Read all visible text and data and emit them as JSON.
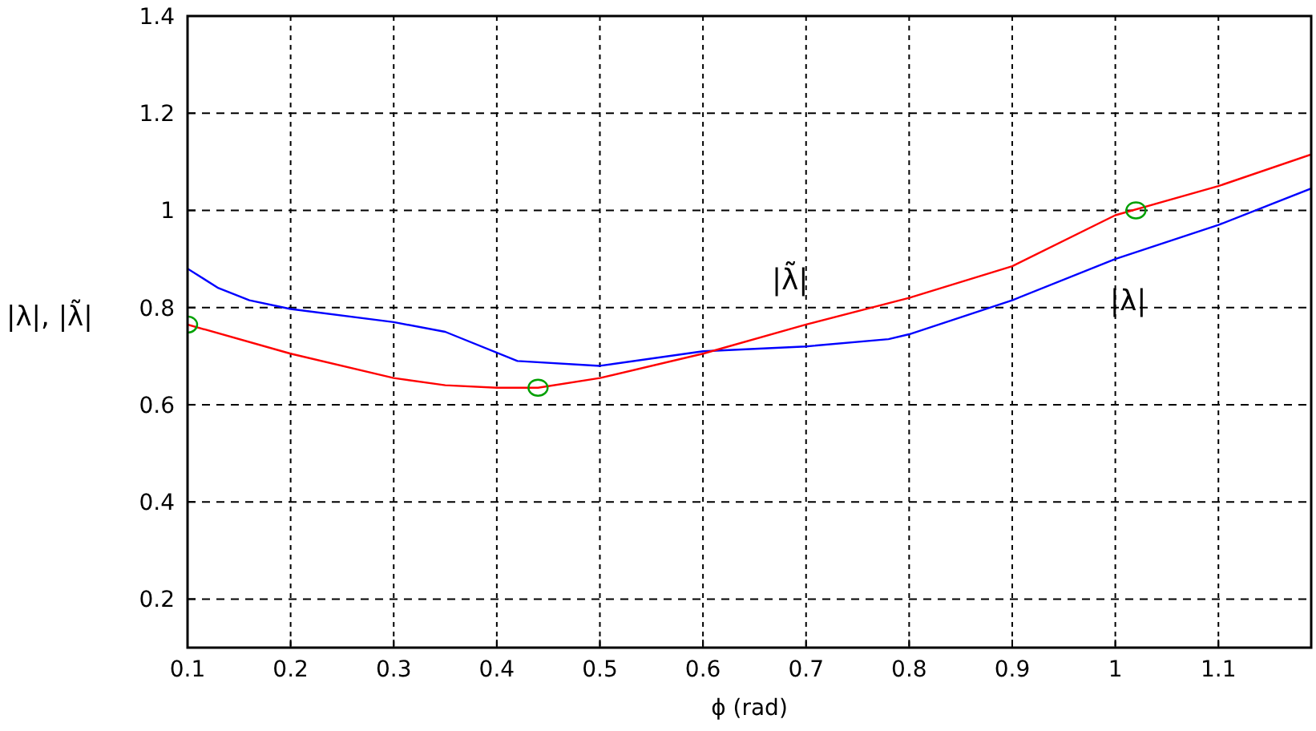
{
  "chart_data": {
    "type": "line",
    "xlabel": "ϕ (rad)",
    "ylabel": "|λ|, |λ̃|",
    "xlim": [
      0.1,
      1.19
    ],
    "ylim": [
      0.1,
      1.4
    ],
    "xticks": [
      0.1,
      0.2,
      0.3,
      0.4,
      0.5,
      0.6,
      0.7,
      0.8,
      0.9,
      1,
      1.1
    ],
    "yticks": [
      0.2,
      0.4,
      0.6,
      0.8,
      1,
      1.2,
      1.4
    ],
    "grid": true,
    "line_style": "solid",
    "marker": "none",
    "series": [
      {
        "name": "|λ|",
        "color": "#0000ff",
        "x": [
          0.1,
          0.13,
          0.16,
          0.2,
          0.3,
          0.35,
          0.42,
          0.5,
          0.6,
          0.7,
          0.78,
          0.8,
          0.9,
          1.0,
          1.1,
          1.19
        ],
        "values": [
          0.88,
          0.84,
          0.815,
          0.797,
          0.77,
          0.75,
          0.69,
          0.68,
          0.71,
          0.72,
          0.735,
          0.745,
          0.815,
          0.9,
          0.97,
          1.045
        ]
      },
      {
        "name": "|λ̃|",
        "color": "#ff0000",
        "x": [
          0.1,
          0.2,
          0.3,
          0.35,
          0.4,
          0.44,
          0.5,
          0.6,
          0.7,
          0.8,
          0.9,
          1.0,
          1.1,
          1.19
        ],
        "values": [
          0.765,
          0.705,
          0.655,
          0.64,
          0.635,
          0.635,
          0.655,
          0.705,
          0.765,
          0.82,
          0.885,
          0.99,
          1.05,
          1.115
        ]
      },
      {
        "type": "scatter",
        "marker": "circle",
        "color": "#00a000",
        "x": [
          0.1,
          0.44,
          1.02
        ],
        "values": [
          0.765,
          0.635,
          1.0
        ]
      }
    ]
  }
}
